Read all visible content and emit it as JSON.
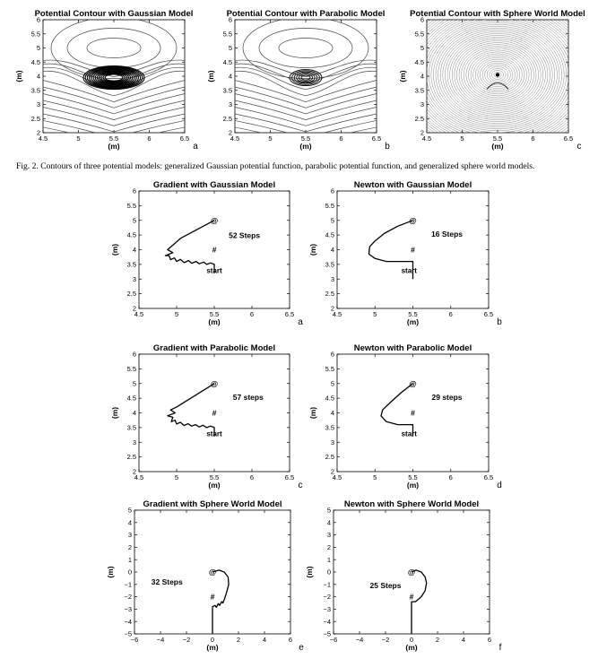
{
  "caption": "Fig. 2.  Contours of three potential models: generalized Gaussian potential function, parabolic potential function, and generalized sphere world models.",
  "chart_data": [
    {
      "id": "contour-gaussian",
      "type": "contour",
      "title": "Potential Contour with Gaussian Model",
      "xlabel": "(m)",
      "ylabel": "(m)",
      "panel_letter": "a",
      "xlim": [
        4.5,
        6.5
      ],
      "ylim": [
        2,
        6
      ],
      "xticks": [
        "4.5",
        "5",
        "5.5",
        "6",
        "6.5"
      ],
      "yticks": [
        "2",
        "2.5",
        "3",
        "3.5",
        "4",
        "4.5",
        "5",
        "5.5",
        "6"
      ],
      "model": "gaussian"
    },
    {
      "id": "contour-parabolic",
      "type": "contour",
      "title": "Potential Contour with Parabolic Model",
      "xlabel": "(m)",
      "ylabel": "(m)",
      "panel_letter": "b",
      "xlim": [
        4.5,
        6.5
      ],
      "ylim": [
        2,
        6
      ],
      "xticks": [
        "4.5",
        "5",
        "5.5",
        "6",
        "6.5"
      ],
      "yticks": [
        "2",
        "2.5",
        "3",
        "3.5",
        "4",
        "4.5",
        "5",
        "5.5",
        "6"
      ],
      "model": "parabolic"
    },
    {
      "id": "contour-sphere",
      "type": "contour",
      "title": "Potential Contour with Sphere World Model",
      "xlabel": "(m)",
      "ylabel": "(m)",
      "panel_letter": "c",
      "xlim": [
        4.5,
        6.5
      ],
      "ylim": [
        2,
        6
      ],
      "xticks": [
        "4.5",
        "5",
        "5.5",
        "6",
        "6.5"
      ],
      "yticks": [
        "2",
        "2.5",
        "3",
        "3.5",
        "4",
        "4.5",
        "5",
        "5.5",
        "6"
      ],
      "model": "sphere"
    },
    {
      "id": "grad-gaussian",
      "type": "line",
      "title": "Gradient with Gaussian Model",
      "xlabel": "(m)",
      "ylabel": "(m)",
      "panel_letter": "a",
      "xlim": [
        4.5,
        6.5
      ],
      "ylim": [
        2,
        6
      ],
      "xticks": [
        "4.5",
        "5",
        "5.5",
        "6",
        "6.5"
      ],
      "yticks": [
        "2",
        "2.5",
        "3",
        "3.5",
        "4",
        "4.5",
        "5",
        "5.5",
        "6"
      ],
      "annotation": "52 Steps",
      "annotation_pos": [
        5.9,
        4.4
      ],
      "markers": [
        {
          "text": "@",
          "x": 5.5,
          "y": 5.0
        },
        {
          "text": "#",
          "x": 5.5,
          "y": 4.0
        },
        {
          "text": "start",
          "x": 5.5,
          "y": 3.2
        }
      ],
      "path": [
        [
          5.5,
          3.2
        ],
        [
          5.5,
          3.5
        ],
        [
          5.45,
          3.55
        ],
        [
          5.4,
          3.5
        ],
        [
          5.36,
          3.58
        ],
        [
          5.3,
          3.52
        ],
        [
          5.26,
          3.6
        ],
        [
          5.2,
          3.54
        ],
        [
          5.16,
          3.63
        ],
        [
          5.1,
          3.56
        ],
        [
          5.05,
          3.67
        ],
        [
          5.0,
          3.6
        ],
        [
          4.97,
          3.72
        ],
        [
          4.92,
          3.66
        ],
        [
          4.9,
          3.8
        ],
        [
          4.85,
          3.8
        ],
        [
          4.95,
          3.9
        ],
        [
          4.88,
          4.0
        ],
        [
          5.06,
          4.4
        ],
        [
          5.5,
          5.0
        ]
      ]
    },
    {
      "id": "newton-gaussian",
      "type": "line",
      "title": "Newton with Gaussian Model",
      "xlabel": "(m)",
      "ylabel": "(m)",
      "panel_letter": "b",
      "xlim": [
        4.5,
        6.5
      ],
      "ylim": [
        2,
        6
      ],
      "xticks": [
        "4.5",
        "5",
        "5.5",
        "6",
        "6.5"
      ],
      "yticks": [
        "2",
        "2.5",
        "3",
        "3.5",
        "4",
        "4.5",
        "5",
        "5.5",
        "6"
      ],
      "annotation": "16 Steps",
      "annotation_pos": [
        5.95,
        4.45
      ],
      "markers": [
        {
          "text": "@",
          "x": 5.5,
          "y": 5.0
        },
        {
          "text": "#",
          "x": 5.5,
          "y": 4.0
        },
        {
          "text": "start",
          "x": 5.45,
          "y": 3.2
        }
      ],
      "path": [
        [
          5.5,
          3.0
        ],
        [
          5.5,
          3.6
        ],
        [
          5.15,
          3.6
        ],
        [
          5.0,
          3.7
        ],
        [
          4.92,
          3.85
        ],
        [
          4.93,
          4.1
        ],
        [
          5.0,
          4.3
        ],
        [
          5.12,
          4.55
        ],
        [
          5.3,
          4.8
        ],
        [
          5.5,
          5.0
        ]
      ]
    },
    {
      "id": "grad-parabolic",
      "type": "line",
      "title": "Gradient with Parabolic Model",
      "xlabel": "(m)",
      "ylabel": "(m)",
      "panel_letter": "c",
      "xlim": [
        4.5,
        6.5
      ],
      "ylim": [
        2,
        6
      ],
      "xticks": [
        "4.5",
        "5",
        "5.5",
        "6",
        "6.5"
      ],
      "yticks": [
        "2",
        "2.5",
        "3",
        "3.5",
        "4",
        "4.5",
        "5",
        "5.5",
        "6"
      ],
      "annotation": "57 steps",
      "annotation_pos": [
        5.95,
        4.45
      ],
      "markers": [
        {
          "text": "@",
          "x": 5.5,
          "y": 5.0
        },
        {
          "text": "#",
          "x": 5.5,
          "y": 4.0
        },
        {
          "text": "start",
          "x": 5.5,
          "y": 3.2
        }
      ],
      "path": [
        [
          5.5,
          3.2
        ],
        [
          5.5,
          3.5
        ],
        [
          5.45,
          3.55
        ],
        [
          5.4,
          3.5
        ],
        [
          5.35,
          3.58
        ],
        [
          5.3,
          3.52
        ],
        [
          5.25,
          3.6
        ],
        [
          5.2,
          3.55
        ],
        [
          5.15,
          3.63
        ],
        [
          5.1,
          3.57
        ],
        [
          5.05,
          3.68
        ],
        [
          5.0,
          3.62
        ],
        [
          4.98,
          3.75
        ],
        [
          4.93,
          3.7
        ],
        [
          4.95,
          3.85
        ],
        [
          4.88,
          3.9
        ],
        [
          4.98,
          4.0
        ],
        [
          4.92,
          4.1
        ],
        [
          5.0,
          4.2
        ],
        [
          5.5,
          5.0
        ]
      ]
    },
    {
      "id": "newton-parabolic",
      "type": "line",
      "title": "Newton with Parabolic Model",
      "xlabel": "(m)",
      "ylabel": "(m)",
      "panel_letter": "d",
      "xlim": [
        4.5,
        6.5
      ],
      "ylim": [
        2,
        6
      ],
      "xticks": [
        "4.5",
        "5",
        "5.5",
        "6",
        "6.5"
      ],
      "yticks": [
        "2",
        "2.5",
        "3",
        "3.5",
        "4",
        "4.5",
        "5",
        "5.5",
        "6"
      ],
      "annotation": "29 steps",
      "annotation_pos": [
        5.95,
        4.45
      ],
      "markers": [
        {
          "text": "@",
          "x": 5.5,
          "y": 5.0
        },
        {
          "text": "#",
          "x": 5.5,
          "y": 4.0
        },
        {
          "text": "start",
          "x": 5.45,
          "y": 3.2
        }
      ],
      "path": [
        [
          5.5,
          3.2
        ],
        [
          5.5,
          3.6
        ],
        [
          5.3,
          3.6
        ],
        [
          5.15,
          3.7
        ],
        [
          5.08,
          3.9
        ],
        [
          5.1,
          4.1
        ],
        [
          5.2,
          4.35
        ],
        [
          5.35,
          4.7
        ],
        [
          5.5,
          5.0
        ]
      ]
    },
    {
      "id": "grad-sphere",
      "type": "line",
      "title": "Gradient with Sphere World Model",
      "xlabel": "(m)",
      "ylabel": "(m)",
      "panel_letter": "e",
      "xlim": [
        -6,
        6
      ],
      "ylim": [
        -5,
        5
      ],
      "xticks": [
        "−6",
        "−4",
        "−2",
        "0",
        "2",
        "4",
        "6"
      ],
      "yticks": [
        "−5",
        "−4",
        "−3",
        "−2",
        "−1",
        "0",
        "1",
        "2",
        "3",
        "4",
        "5"
      ],
      "annotation": "32 Steps",
      "annotation_pos": [
        -3.5,
        -1.0
      ],
      "markers": [
        {
          "text": "@",
          "x": 0.0,
          "y": 0.0
        },
        {
          "text": "#",
          "x": 0.0,
          "y": -2.0
        }
      ],
      "path": [
        [
          0.0,
          -5.0
        ],
        [
          0.0,
          -2.8
        ],
        [
          0.2,
          -2.7
        ],
        [
          0.3,
          -2.85
        ],
        [
          0.45,
          -2.55
        ],
        [
          0.55,
          -2.7
        ],
        [
          0.7,
          -2.4
        ],
        [
          0.8,
          -2.5
        ],
        [
          0.95,
          -2.1
        ],
        [
          1.1,
          -1.6
        ],
        [
          1.25,
          -1.0
        ],
        [
          1.2,
          -0.4
        ],
        [
          0.9,
          0.0
        ],
        [
          0.5,
          0.15
        ],
        [
          0.0,
          0.0
        ]
      ]
    },
    {
      "id": "newton-sphere",
      "type": "line",
      "title": "Newton with Sphere World Model",
      "xlabel": "(m)",
      "ylabel": "(m)",
      "panel_letter": "f",
      "xlim": [
        -6,
        6
      ],
      "ylim": [
        -5,
        5
      ],
      "xticks": [
        "−6",
        "−4",
        "−2",
        "0",
        "2",
        "4",
        "6"
      ],
      "yticks": [
        "−5",
        "−4",
        "−3",
        "−2",
        "−1",
        "0",
        "1",
        "2",
        "3",
        "4",
        "5"
      ],
      "annotation": "25 Steps",
      "annotation_pos": [
        -2.0,
        -1.3
      ],
      "markers": [
        {
          "text": "@",
          "x": 0.0,
          "y": 0.0
        },
        {
          "text": "#",
          "x": 0.0,
          "y": -2.0
        }
      ],
      "path": [
        [
          0.0,
          -5.0
        ],
        [
          0.0,
          -2.4
        ],
        [
          0.3,
          -2.4
        ],
        [
          0.75,
          -2.0
        ],
        [
          1.05,
          -1.5
        ],
        [
          1.15,
          -0.9
        ],
        [
          1.05,
          -0.4
        ],
        [
          0.75,
          0.0
        ],
        [
          0.35,
          0.15
        ],
        [
          0.0,
          0.0
        ]
      ]
    }
  ]
}
